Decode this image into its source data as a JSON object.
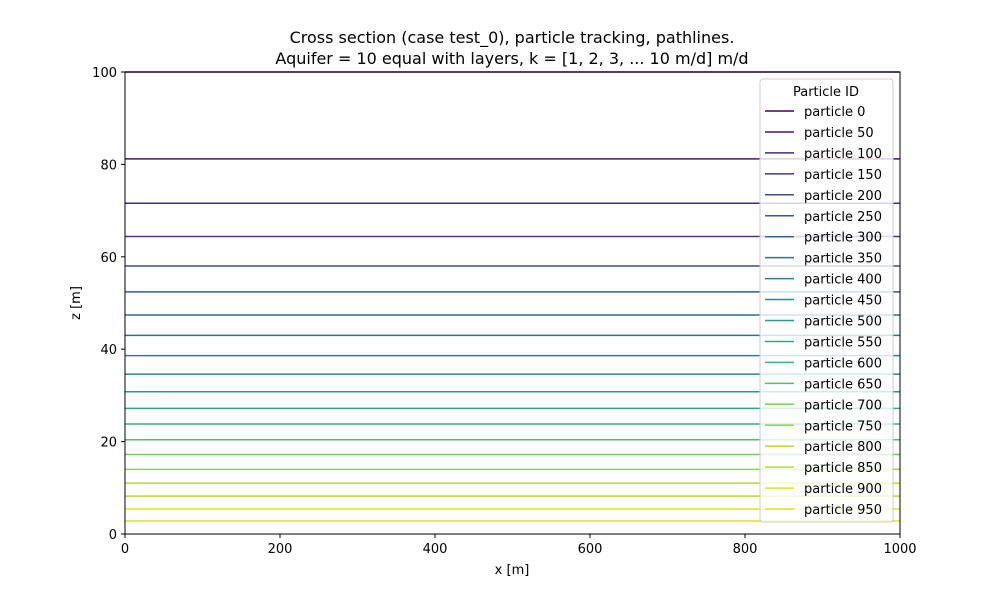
{
  "chart_data": {
    "type": "line",
    "title_line1": "Cross section (case test_0), particle tracking, pathlines.",
    "title_line2": "Aquifer = 10 equal with layers, k = [1, 2, 3, ... 10 m/d] m/d",
    "xlabel": "x [m]",
    "ylabel": "z [m]",
    "xlim": [
      0,
      1000
    ],
    "ylim": [
      0,
      100
    ],
    "xticks": [
      0,
      200,
      400,
      600,
      800,
      1000
    ],
    "yticks": [
      0,
      20,
      40,
      60,
      80,
      100
    ],
    "grid": false,
    "legend": {
      "title": "Particle ID",
      "placement": "upper right"
    },
    "series": [
      {
        "name": "particle 0",
        "x": [
          0,
          1000
        ],
        "y": [
          100.0,
          100.0
        ],
        "color": "#440154"
      },
      {
        "name": "particle 50",
        "x": [
          0,
          1000
        ],
        "y": [
          81.2,
          81.2
        ],
        "color": "#481668"
      },
      {
        "name": "particle 100",
        "x": [
          0,
          1000
        ],
        "y": [
          71.6,
          71.6
        ],
        "color": "#482878"
      },
      {
        "name": "particle 150",
        "x": [
          0,
          1000
        ],
        "y": [
          64.4,
          64.4
        ],
        "color": "#443983"
      },
      {
        "name": "particle 200",
        "x": [
          0,
          1000
        ],
        "y": [
          58.0,
          58.0
        ],
        "color": "#3e4a89"
      },
      {
        "name": "particle 250",
        "x": [
          0,
          1000
        ],
        "y": [
          52.4,
          52.4
        ],
        "color": "#375a8c"
      },
      {
        "name": "particle 300",
        "x": [
          0,
          1000
        ],
        "y": [
          47.4,
          47.4
        ],
        "color": "#31688e"
      },
      {
        "name": "particle 350",
        "x": [
          0,
          1000
        ],
        "y": [
          43.0,
          43.0
        ],
        "color": "#2b758e"
      },
      {
        "name": "particle 400",
        "x": [
          0,
          1000
        ],
        "y": [
          38.6,
          38.6
        ],
        "color": "#26828e"
      },
      {
        "name": "particle 450",
        "x": [
          0,
          1000
        ],
        "y": [
          34.6,
          34.6
        ],
        "color": "#21918c"
      },
      {
        "name": "particle 500",
        "x": [
          0,
          1000
        ],
        "y": [
          30.8,
          30.8
        ],
        "color": "#1f9e89"
      },
      {
        "name": "particle 550",
        "x": [
          0,
          1000
        ],
        "y": [
          27.2,
          27.2
        ],
        "color": "#25ab82"
      },
      {
        "name": "particle 600",
        "x": [
          0,
          1000
        ],
        "y": [
          23.8,
          23.8
        ],
        "color": "#35b779"
      },
      {
        "name": "particle 650",
        "x": [
          0,
          1000
        ],
        "y": [
          20.4,
          20.4
        ],
        "color": "#4ec36b"
      },
      {
        "name": "particle 700",
        "x": [
          0,
          1000
        ],
        "y": [
          17.2,
          17.2
        ],
        "color": "#6ece58"
      },
      {
        "name": "particle 750",
        "x": [
          0,
          1000
        ],
        "y": [
          14.0,
          14.0
        ],
        "color": "#90d743"
      },
      {
        "name": "particle 800",
        "x": [
          0,
          1000
        ],
        "y": [
          11.0,
          11.0
        ],
        "color": "#b5de2b"
      },
      {
        "name": "particle 850",
        "x": [
          0,
          1000
        ],
        "y": [
          8.2,
          8.2
        ],
        "color": "#b5de2b"
      },
      {
        "name": "particle 900",
        "x": [
          0,
          1000
        ],
        "y": [
          5.4,
          5.4
        ],
        "color": "#dde318"
      },
      {
        "name": "particle 950",
        "x": [
          0,
          1000
        ],
        "y": [
          2.8,
          2.8
        ],
        "color": "#dde318"
      }
    ]
  }
}
